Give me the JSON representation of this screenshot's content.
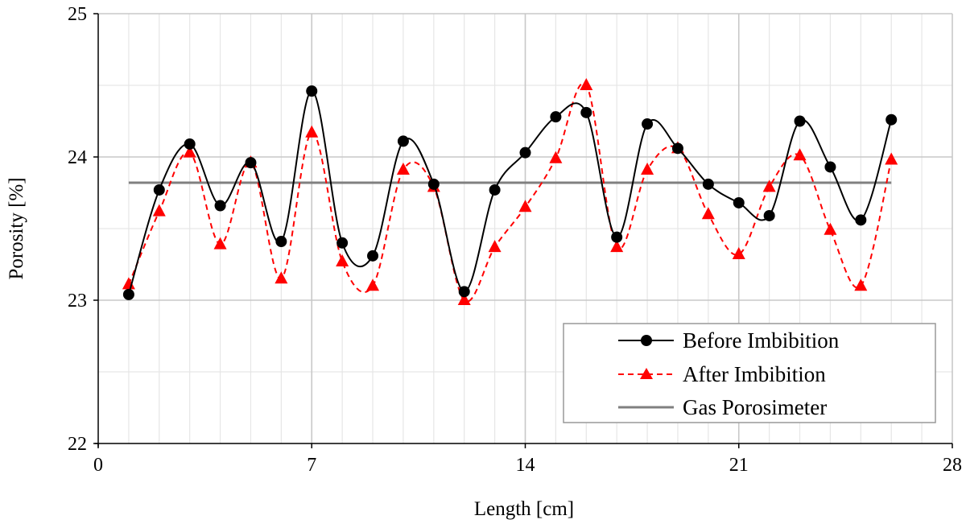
{
  "chart_data": {
    "type": "line",
    "xlabel": "Length [cm]",
    "ylabel": "Porosity [%]",
    "xlim": [
      0,
      28
    ],
    "ylim": [
      22,
      25
    ],
    "xticks": [
      0,
      7,
      14,
      21,
      28
    ],
    "yticks": [
      22,
      23,
      24,
      25
    ],
    "x_minor_step": 1,
    "y_minor_step": 0.5,
    "grid": true,
    "legend_position": "bottom-right",
    "series": [
      {
        "name": "Before Imbibition",
        "color": "#000000",
        "marker": "circle",
        "line": "solid",
        "x": [
          1,
          2,
          3,
          4,
          5,
          6,
          7,
          8,
          9,
          10,
          11,
          12,
          13,
          14,
          15,
          16,
          17,
          18,
          19,
          20,
          21,
          22,
          23,
          24,
          25,
          26
        ],
        "y": [
          23.04,
          23.77,
          24.09,
          23.66,
          23.96,
          23.41,
          24.46,
          23.4,
          23.31,
          24.11,
          23.81,
          23.06,
          23.77,
          24.03,
          24.28,
          24.31,
          23.44,
          24.23,
          24.06,
          23.81,
          23.68,
          23.59,
          24.25,
          23.93,
          23.56,
          24.26
        ]
      },
      {
        "name": "After Imbibition",
        "color": "#ff0000",
        "marker": "triangle",
        "line": "dashed",
        "x": [
          1,
          2,
          3,
          4,
          5,
          6,
          7,
          8,
          9,
          10,
          11,
          12,
          13,
          14,
          15,
          16,
          17,
          18,
          19,
          20,
          21,
          22,
          23,
          24,
          25,
          26
        ],
        "y": [
          23.11,
          23.62,
          24.03,
          23.39,
          23.96,
          23.15,
          24.17,
          23.27,
          23.1,
          23.91,
          23.79,
          23.0,
          23.37,
          23.65,
          23.99,
          24.5,
          23.37,
          23.91,
          24.06,
          23.6,
          23.32,
          23.79,
          24.01,
          23.49,
          23.1,
          23.98
        ]
      },
      {
        "name": "Gas Porosimeter",
        "color": "#808080",
        "marker": "none",
        "line": "solid",
        "x": [
          1,
          26
        ],
        "y": [
          23.82,
          23.82
        ]
      }
    ]
  }
}
